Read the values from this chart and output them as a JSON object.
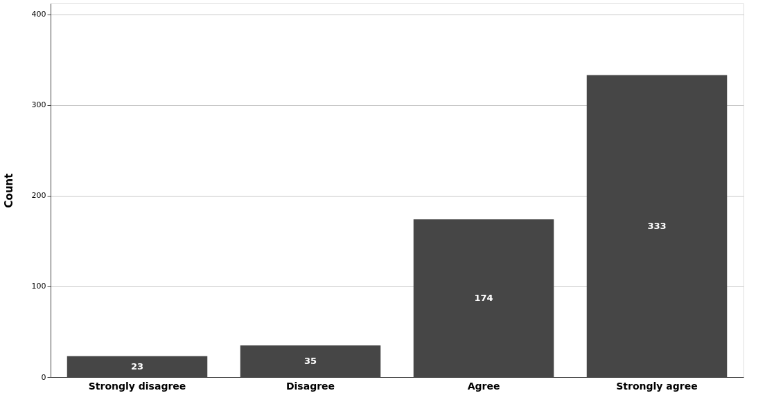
{
  "chart_data": {
    "type": "bar",
    "ylabel": "Count",
    "categories": [
      "Strongly disagree",
      "Disagree",
      "Agree",
      "Strongly agree"
    ],
    "values": [
      23,
      35,
      174,
      333
    ],
    "color": "#464646",
    "ylim": [
      0,
      412
    ],
    "yticks": [
      0,
      100,
      200,
      300,
      400
    ],
    "grid": "y",
    "data_labels": true
  }
}
